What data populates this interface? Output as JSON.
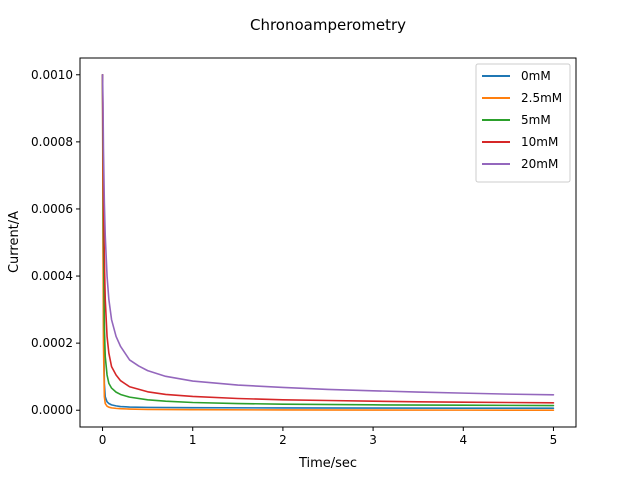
{
  "chart_data": {
    "type": "line",
    "title": "Chronoamperometry",
    "xlabel": "Time/sec",
    "ylabel": "Current/A",
    "xlim": [
      -0.25,
      5.25
    ],
    "ylim": [
      -5e-05,
      0.00105
    ],
    "xticks": [
      0,
      1,
      2,
      3,
      4,
      5
    ],
    "xtick_labels": [
      "0",
      "1",
      "2",
      "3",
      "4",
      "5"
    ],
    "yticks": [
      0,
      0.0002,
      0.0004,
      0.0006,
      0.0008,
      0.001
    ],
    "ytick_labels": [
      "0.0000",
      "0.0002",
      "0.0004",
      "0.0006",
      "0.0008",
      "0.0010"
    ],
    "grid": false,
    "legend_position": "top-right",
    "series": [
      {
        "name": "0mM",
        "color": "#1f77b4",
        "x": [
          0,
          0.005,
          0.01,
          0.02,
          0.03,
          0.05,
          0.07,
          0.1,
          0.15,
          0.2,
          0.3,
          0.5,
          1,
          2,
          3,
          4,
          5
        ],
        "y": [
          0.001,
          0.0006,
          0.0003,
          8e-05,
          4e-05,
          2.5e-05,
          2e-05,
          1.6e-05,
          1.3e-05,
          1.1e-05,
          9.5e-06,
          8.5e-06,
          7.5e-06,
          6.8e-06,
          6.4e-06,
          6.1e-06,
          6e-06
        ]
      },
      {
        "name": "2.5mM",
        "color": "#ff7f0e",
        "x": [
          0,
          0.005,
          0.01,
          0.02,
          0.03,
          0.05,
          0.07,
          0.1,
          0.15,
          0.2,
          0.3,
          0.5,
          1,
          2,
          3,
          4,
          5
        ],
        "y": [
          0.001,
          0.0005,
          0.0002,
          4e-05,
          2e-05,
          1.2e-05,
          9e-06,
          7e-06,
          5.5e-06,
          4.5e-06,
          3.5e-06,
          2.5e-06,
          1.5e-06,
          8e-07,
          5e-07,
          3e-07,
          2e-07
        ]
      },
      {
        "name": "5mM",
        "color": "#2ca02c",
        "x": [
          0,
          0.01,
          0.02,
          0.03,
          0.05,
          0.07,
          0.1,
          0.15,
          0.2,
          0.3,
          0.5,
          0.7,
          1,
          1.5,
          2,
          3,
          4,
          5
        ],
        "y": [
          0.001,
          0.00055,
          0.00025,
          0.00016,
          0.000105,
          8e-05,
          6.6e-05,
          5.4e-05,
          4.7e-05,
          3.9e-05,
          3.1e-05,
          2.7e-05,
          2.3e-05,
          2e-05,
          1.8e-05,
          1.6e-05,
          1.5e-05,
          1.4e-05
        ]
      },
      {
        "name": "10mM",
        "color": "#d62728",
        "x": [
          0,
          0.01,
          0.02,
          0.03,
          0.05,
          0.07,
          0.1,
          0.15,
          0.2,
          0.3,
          0.5,
          0.7,
          1,
          1.5,
          2,
          2.5,
          3,
          3.5,
          4,
          4.5,
          5
        ],
        "y": [
          0.001,
          0.00065,
          0.00045,
          0.00033,
          0.00022,
          0.00017,
          0.00013,
          0.000105,
          8.8e-05,
          7e-05,
          5.5e-05,
          4.7e-05,
          4.1e-05,
          3.5e-05,
          3.1e-05,
          2.9e-05,
          2.7e-05,
          2.5e-05,
          2.4e-05,
          2.3e-05,
          2.2e-05
        ]
      },
      {
        "name": "20mM",
        "color": "#9467bd",
        "x": [
          0,
          0.005,
          0.01,
          0.02,
          0.03,
          0.05,
          0.07,
          0.1,
          0.15,
          0.2,
          0.3,
          0.4,
          0.5,
          0.7,
          1,
          1.5,
          2,
          2.5,
          3,
          3.5,
          4,
          4.5,
          5
        ],
        "y": [
          0.001,
          0.00092,
          0.00078,
          0.00062,
          0.00052,
          0.0004,
          0.00033,
          0.00027,
          0.00022,
          0.00019,
          0.00015,
          0.000132,
          0.000118,
          0.000101,
          8.7e-05,
          7.5e-05,
          6.8e-05,
          6.2e-05,
          5.8e-05,
          5.4e-05,
          5.1e-05,
          4.8e-05,
          4.6e-05
        ]
      }
    ]
  }
}
